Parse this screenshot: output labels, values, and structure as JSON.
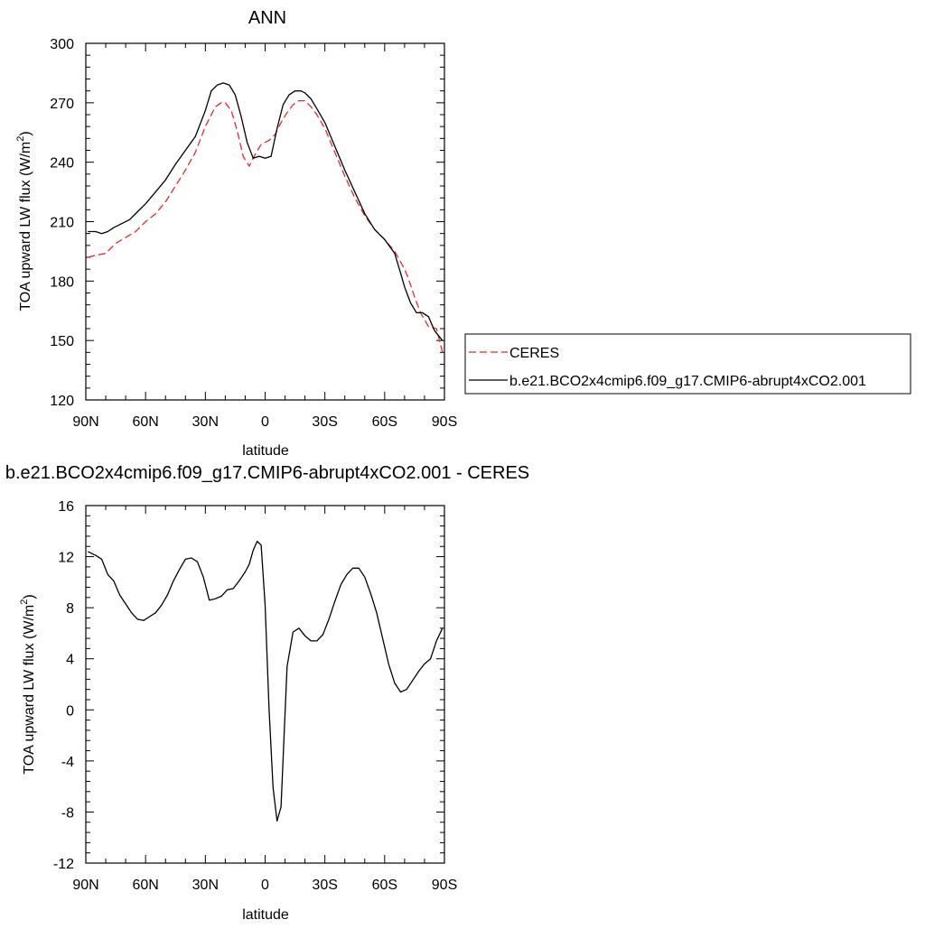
{
  "chart_data": [
    {
      "type": "line",
      "title": "ANN",
      "xlabel": "latitude",
      "ylabel": "TOA upward LW flux (W/m²)",
      "ylabel_main": "TOA upward LW flux (W/m",
      "ylabel_sup": "2",
      "ylabel_close": ")",
      "xlim": [
        90,
        -90
      ],
      "ylim": [
        120,
        300
      ],
      "xticks": [
        90,
        60,
        30,
        0,
        -30,
        -60,
        -90
      ],
      "xtick_labels": [
        "90N",
        "60N",
        "30N",
        "0",
        "30S",
        "60S",
        "90S"
      ],
      "yticks": [
        120,
        150,
        180,
        210,
        240,
        270,
        300
      ],
      "ytick_labels": [
        "120",
        "150",
        "180",
        "210",
        "240",
        "270",
        "300"
      ],
      "grid": false,
      "legend_position": "right",
      "series": [
        {
          "name": "CERES",
          "color": "#e8292a",
          "dash": "dashed",
          "x": [
            89,
            85,
            80,
            75,
            70,
            65,
            60,
            55,
            50,
            45,
            40,
            35,
            30,
            25,
            22,
            20,
            17,
            14,
            11,
            8,
            5,
            2,
            0,
            -2,
            -5,
            -8,
            -11,
            -14,
            -17,
            -20,
            -23,
            -26,
            -30,
            -35,
            -40,
            -45,
            -50,
            -55,
            -60,
            -65,
            -70,
            -72,
            -75,
            -78,
            -82,
            -86,
            -89
          ],
          "y": [
            192,
            193,
            194,
            199,
            202,
            205,
            210,
            214,
            220,
            228,
            236,
            245,
            258,
            268,
            270,
            270,
            266,
            256,
            243,
            238,
            244,
            249,
            250,
            251,
            254,
            260,
            265,
            269,
            271,
            271,
            268,
            264,
            257,
            245,
            233,
            222,
            213,
            206,
            201,
            195,
            186,
            181,
            172,
            164,
            157,
            156,
            144
          ]
        },
        {
          "name": "b.e21.BCO2x4cmip6.f09_g17.CMIP6-abrupt4xCO2.001",
          "color": "#000000",
          "dash": "solid",
          "x": [
            89,
            85,
            82,
            79,
            76,
            72,
            68,
            64,
            60,
            55,
            50,
            45,
            40,
            35,
            30,
            27,
            24,
            21,
            18,
            15,
            12,
            9,
            6,
            3,
            0,
            -3,
            -6,
            -9,
            -12,
            -15,
            -18,
            -20,
            -23,
            -26,
            -30,
            -35,
            -40,
            -45,
            -50,
            -55,
            -60,
            -65,
            -68,
            -70,
            -73,
            -76,
            -79,
            -82,
            -85,
            -89
          ],
          "y": [
            205,
            205,
            204,
            205,
            207,
            209,
            211,
            215,
            219,
            225,
            231,
            239,
            246,
            253,
            266,
            276,
            279,
            280,
            279,
            274,
            263,
            250,
            242,
            243,
            242,
            243,
            257,
            269,
            274,
            276,
            276,
            275,
            272,
            267,
            260,
            248,
            236,
            225,
            214,
            206,
            201,
            194,
            184,
            177,
            169,
            164,
            164,
            162,
            155,
            150
          ]
        }
      ]
    },
    {
      "type": "line",
      "title": "b.e21.BCO2x4cmip6.f09_g17.CMIP6-abrupt4xCO2.001 - CERES",
      "xlabel": "latitude",
      "ylabel": "TOA upward LW flux (W/m²)",
      "ylabel_main": "TOA upward LW flux (W/m",
      "ylabel_sup": "2",
      "ylabel_close": ")",
      "xlim": [
        90,
        -90
      ],
      "ylim": [
        -12,
        16
      ],
      "xticks": [
        90,
        60,
        30,
        0,
        -30,
        -60,
        -90
      ],
      "xtick_labels": [
        "90N",
        "60N",
        "30N",
        "0",
        "30S",
        "60S",
        "90S"
      ],
      "yticks": [
        -12,
        -8,
        -4,
        0,
        4,
        8,
        12,
        16
      ],
      "ytick_labels": [
        "-12",
        "-8",
        "-4",
        "0",
        "4",
        "8",
        "12",
        "16"
      ],
      "grid": false,
      "series": [
        {
          "name": "",
          "color": "#000000",
          "dash": "solid",
          "x": [
            89,
            85,
            82,
            79,
            76,
            73,
            70,
            67,
            64,
            61,
            58,
            55,
            52,
            49,
            46,
            43,
            40,
            37,
            34,
            31,
            28,
            25,
            22,
            19,
            16,
            13,
            10,
            8,
            6,
            4,
            2,
            0,
            -2,
            -4,
            -6,
            -8,
            -11,
            -14,
            -17,
            -20,
            -23,
            -26,
            -29,
            -32,
            -35,
            -38,
            -41,
            -44,
            -47,
            -50,
            -53,
            -56,
            -59,
            -62,
            -65,
            -68,
            -71,
            -74,
            -77,
            -80,
            -83,
            -86,
            -89
          ],
          "y": [
            12.4,
            12.1,
            11.8,
            10.6,
            10.1,
            9.0,
            8.3,
            7.6,
            7.1,
            7.0,
            7.3,
            7.6,
            8.2,
            9.0,
            10.1,
            11.0,
            11.8,
            11.9,
            11.6,
            10.4,
            8.6,
            8.7,
            8.9,
            9.4,
            9.5,
            10.1,
            10.8,
            11.4,
            12.5,
            13.2,
            12.9,
            8.2,
            0.0,
            -6.1,
            -8.7,
            -7.6,
            3.4,
            6.1,
            6.4,
            5.8,
            5.4,
            5.4,
            5.9,
            7.1,
            8.5,
            9.8,
            10.6,
            11.1,
            11.1,
            10.4,
            9.1,
            7.6,
            5.6,
            3.6,
            2.1,
            1.4,
            1.6,
            2.3,
            3.0,
            3.6,
            4.0,
            5.4,
            6.4
          ]
        }
      ]
    }
  ]
}
